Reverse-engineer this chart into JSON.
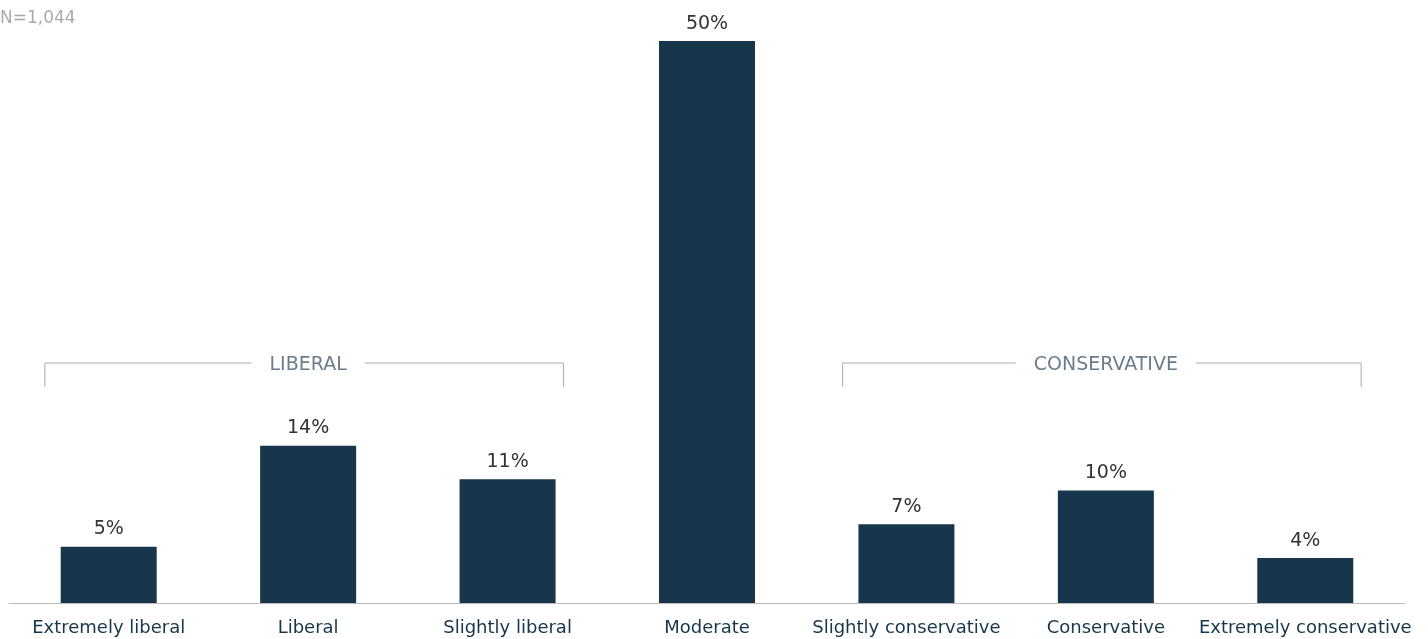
{
  "chart_data": {
    "type": "bar",
    "categories": [
      "Extremely liberal",
      "Liberal",
      "Slightly liberal",
      "Moderate",
      "Slightly conservative",
      "Conservative",
      "Extremely conservative"
    ],
    "values": [
      5,
      14,
      11,
      50,
      7,
      10,
      4
    ],
    "value_labels": [
      "5%",
      "14%",
      "11%",
      "50%",
      "7%",
      "10%",
      "4%"
    ],
    "color": "#17364b",
    "tick_labels": "x",
    "annotations": [
      "N=1,044",
      "LIBERAL",
      "CONSERVATIVE"
    ]
  }
}
